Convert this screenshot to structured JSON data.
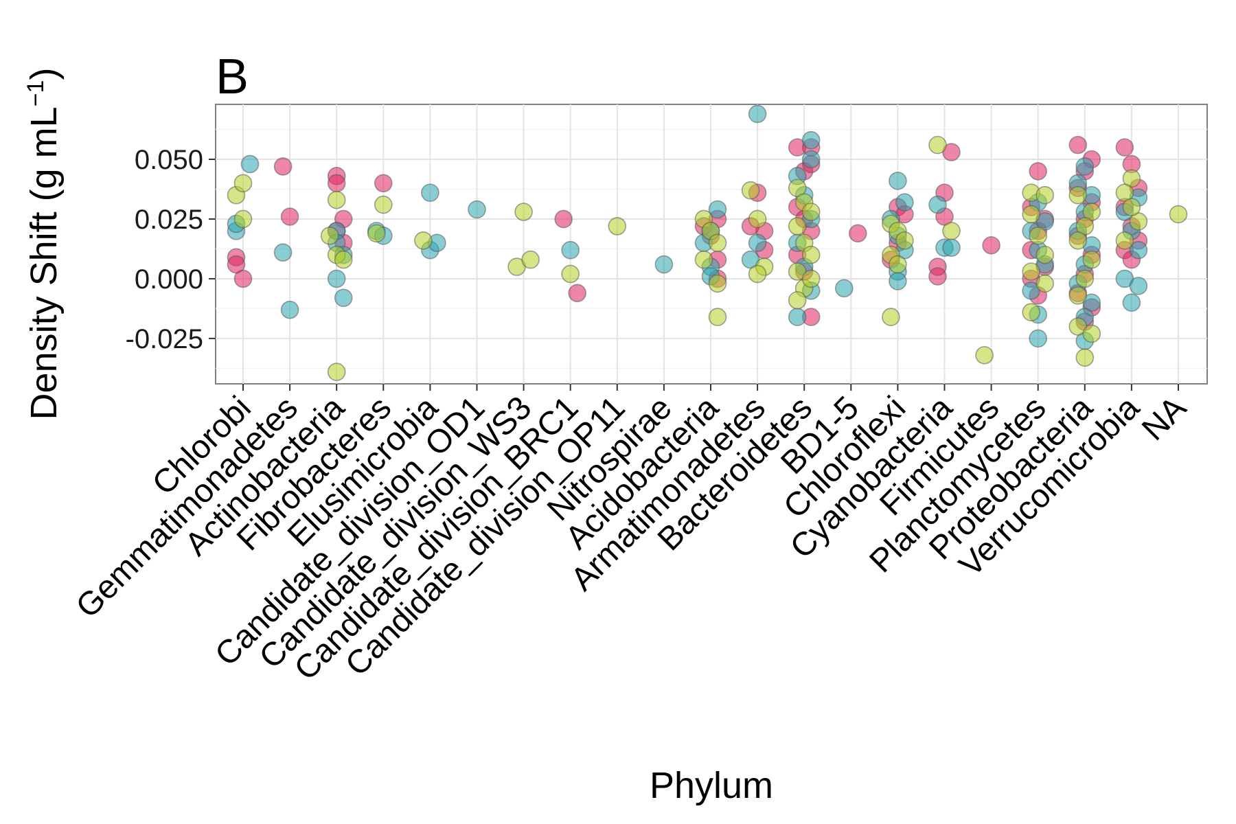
{
  "chart_data": {
    "type": "scatter",
    "title": "B",
    "xlabel": "Phylum",
    "ylabel": "Density Shift (g mL",
    "ylabel_sup": "−1",
    "ylabel_close": ")",
    "ylim": [
      -0.044,
      0.073
    ],
    "yticks": [
      -0.025,
      0.0,
      0.025,
      0.05
    ],
    "ytick_labels": [
      "-0.025",
      "0.000",
      "0.025",
      "0.050"
    ],
    "grid": true,
    "legend": "none",
    "categories": [
      "Chlorobi",
      "Gemmatimonadetes",
      "Actinobacteria",
      "Fibrobacteres",
      "Elusimicrobia",
      "Candidate_division_OD1",
      "Candidate_division_WS3",
      "Candidate_division_BRC1",
      "Candidate_division_OP11",
      "Nitrospirae",
      "Acidobacteria",
      "Armatimonadetes",
      "Bacteroidetes",
      "BD1-5",
      "Chloroflexi",
      "Cyanobacteria",
      "Firmicutes",
      "Planctomycetes",
      "Proteobacteria",
      "Verrucomicrobia",
      "NA"
    ],
    "colors": {
      "red": "#e0245e",
      "teal": "#2aa5b0",
      "lime": "#b5d025"
    },
    "points": [
      [
        0,
        -0.01,
        0.009,
        "red"
      ],
      [
        0,
        -0.01,
        0.006,
        "red"
      ],
      [
        0,
        0.0,
        0.0,
        "red"
      ],
      [
        0,
        -0.01,
        0.02,
        "teal"
      ],
      [
        0,
        -0.01,
        0.023,
        "teal"
      ],
      [
        0,
        0.01,
        0.048,
        "teal"
      ],
      [
        0,
        -0.01,
        0.035,
        "lime"
      ],
      [
        0,
        0.0,
        0.04,
        "lime"
      ],
      [
        0,
        0.0,
        0.025,
        "lime"
      ],
      [
        1,
        -0.01,
        0.047,
        "red"
      ],
      [
        1,
        0.0,
        0.026,
        "red"
      ],
      [
        1,
        -0.01,
        0.011,
        "teal"
      ],
      [
        1,
        0.0,
        -0.013,
        "teal"
      ],
      [
        2,
        0.0,
        0.043,
        "red"
      ],
      [
        2,
        0.0,
        0.04,
        "red"
      ],
      [
        2,
        0.01,
        0.025,
        "red"
      ],
      [
        2,
        0.0,
        0.02,
        "red"
      ],
      [
        2,
        0.01,
        0.015,
        "red"
      ],
      [
        2,
        0.0,
        0.02,
        "teal"
      ],
      [
        2,
        0.0,
        0.015,
        "teal"
      ],
      [
        2,
        0.0,
        0.0,
        "teal"
      ],
      [
        2,
        0.01,
        -0.008,
        "teal"
      ],
      [
        2,
        0.01,
        0.01,
        "teal"
      ],
      [
        2,
        -0.01,
        0.018,
        "lime"
      ],
      [
        2,
        0.0,
        0.033,
        "lime"
      ],
      [
        2,
        0.0,
        0.01,
        "lime"
      ],
      [
        2,
        0.01,
        0.008,
        "lime"
      ],
      [
        2,
        0.0,
        -0.039,
        "lime"
      ],
      [
        3,
        0.0,
        0.04,
        "red"
      ],
      [
        3,
        -0.01,
        0.02,
        "teal"
      ],
      [
        3,
        0.0,
        0.018,
        "teal"
      ],
      [
        3,
        0.0,
        0.031,
        "lime"
      ],
      [
        3,
        -0.01,
        0.019,
        "lime"
      ],
      [
        4,
        0.0,
        0.036,
        "teal"
      ],
      [
        4,
        0.0,
        0.012,
        "teal"
      ],
      [
        4,
        0.01,
        0.015,
        "teal"
      ],
      [
        4,
        -0.01,
        0.016,
        "lime"
      ],
      [
        5,
        0.0,
        0.029,
        "teal"
      ],
      [
        6,
        0.0,
        0.028,
        "lime"
      ],
      [
        6,
        -0.01,
        0.005,
        "lime"
      ],
      [
        6,
        0.01,
        0.008,
        "lime"
      ],
      [
        7,
        -0.01,
        0.025,
        "red"
      ],
      [
        7,
        0.01,
        -0.006,
        "red"
      ],
      [
        7,
        0.0,
        0.012,
        "teal"
      ],
      [
        7,
        0.0,
        0.002,
        "lime"
      ],
      [
        8,
        0.0,
        0.022,
        "lime"
      ],
      [
        9,
        0.0,
        0.006,
        "teal"
      ],
      [
        10,
        -0.01,
        0.022,
        "red"
      ],
      [
        10,
        0.01,
        0.025,
        "red"
      ],
      [
        10,
        0.0,
        0.018,
        "red"
      ],
      [
        10,
        0.01,
        0.008,
        "red"
      ],
      [
        10,
        0.01,
        0.0,
        "red"
      ],
      [
        10,
        0.01,
        0.029,
        "teal"
      ],
      [
        10,
        0.0,
        0.02,
        "teal"
      ],
      [
        10,
        -0.01,
        0.015,
        "teal"
      ],
      [
        10,
        0.0,
        0.005,
        "teal"
      ],
      [
        10,
        0.0,
        0.001,
        "teal"
      ],
      [
        10,
        -0.01,
        0.025,
        "lime"
      ],
      [
        10,
        0.0,
        0.02,
        "lime"
      ],
      [
        10,
        0.01,
        0.015,
        "lime"
      ],
      [
        10,
        -0.01,
        0.008,
        "lime"
      ],
      [
        10,
        0.01,
        -0.002,
        "lime"
      ],
      [
        10,
        0.01,
        -0.016,
        "lime"
      ],
      [
        11,
        0.0,
        0.036,
        "red"
      ],
      [
        11,
        0.01,
        0.02,
        "red"
      ],
      [
        11,
        -0.01,
        0.022,
        "red"
      ],
      [
        11,
        0.01,
        0.012,
        "red"
      ],
      [
        11,
        0.0,
        0.069,
        "teal"
      ],
      [
        11,
        -0.01,
        0.008,
        "teal"
      ],
      [
        11,
        0.0,
        0.015,
        "teal"
      ],
      [
        11,
        -0.01,
        0.037,
        "lime"
      ],
      [
        11,
        0.0,
        0.025,
        "lime"
      ],
      [
        11,
        0.01,
        0.005,
        "lime"
      ],
      [
        11,
        0.0,
        0.002,
        "lime"
      ],
      [
        12,
        -0.01,
        0.055,
        "red"
      ],
      [
        12,
        0.01,
        0.055,
        "red"
      ],
      [
        12,
        0.0,
        0.045,
        "red"
      ],
      [
        12,
        0.01,
        0.048,
        "red"
      ],
      [
        12,
        -0.01,
        0.03,
        "red"
      ],
      [
        12,
        0.0,
        0.025,
        "red"
      ],
      [
        12,
        0.01,
        0.02,
        "red"
      ],
      [
        12,
        -0.01,
        0.01,
        "red"
      ],
      [
        12,
        0.01,
        -0.016,
        "red"
      ],
      [
        12,
        0.0,
        0.003,
        "red"
      ],
      [
        12,
        0.01,
        0.058,
        "teal"
      ],
      [
        12,
        0.01,
        0.05,
        "teal"
      ],
      [
        12,
        -0.01,
        0.043,
        "teal"
      ],
      [
        12,
        0.0,
        0.035,
        "teal"
      ],
      [
        12,
        0.01,
        0.025,
        "teal"
      ],
      [
        12,
        -0.01,
        0.015,
        "teal"
      ],
      [
        12,
        0.0,
        0.005,
        "teal"
      ],
      [
        12,
        -0.01,
        -0.016,
        "teal"
      ],
      [
        12,
        0.01,
        -0.005,
        "teal"
      ],
      [
        12,
        -0.01,
        0.038,
        "lime"
      ],
      [
        12,
        0.0,
        0.032,
        "lime"
      ],
      [
        12,
        0.01,
        0.028,
        "lime"
      ],
      [
        12,
        -0.01,
        0.022,
        "lime"
      ],
      [
        12,
        0.0,
        0.015,
        "lime"
      ],
      [
        12,
        0.01,
        0.01,
        "lime"
      ],
      [
        12,
        -0.01,
        0.003,
        "lime"
      ],
      [
        12,
        0.0,
        -0.004,
        "lime"
      ],
      [
        12,
        -0.01,
        -0.009,
        "lime"
      ],
      [
        12,
        0.01,
        0.0,
        "lime"
      ],
      [
        13,
        0.01,
        0.019,
        "red"
      ],
      [
        13,
        -0.01,
        -0.004,
        "teal"
      ],
      [
        14,
        0.0,
        0.03,
        "red"
      ],
      [
        14,
        0.01,
        0.027,
        "red"
      ],
      [
        14,
        0.0,
        0.015,
        "red"
      ],
      [
        14,
        -0.01,
        0.008,
        "red"
      ],
      [
        14,
        0.0,
        0.041,
        "teal"
      ],
      [
        14,
        0.01,
        0.032,
        "teal"
      ],
      [
        14,
        -0.01,
        0.025,
        "teal"
      ],
      [
        14,
        0.0,
        0.018,
        "teal"
      ],
      [
        14,
        0.01,
        0.012,
        "teal"
      ],
      [
        14,
        0.0,
        0.003,
        "teal"
      ],
      [
        14,
        0.0,
        -0.001,
        "teal"
      ],
      [
        14,
        -0.01,
        0.023,
        "lime"
      ],
      [
        14,
        0.0,
        0.02,
        "lime"
      ],
      [
        14,
        0.01,
        0.016,
        "lime"
      ],
      [
        14,
        -0.01,
        0.01,
        "lime"
      ],
      [
        14,
        0.0,
        0.006,
        "lime"
      ],
      [
        14,
        -0.01,
        -0.016,
        "lime"
      ],
      [
        15,
        0.0,
        0.036,
        "red"
      ],
      [
        15,
        0.01,
        0.053,
        "red"
      ],
      [
        15,
        0.0,
        0.026,
        "red"
      ],
      [
        15,
        -0.01,
        0.005,
        "red"
      ],
      [
        15,
        -0.01,
        0.001,
        "red"
      ],
      [
        15,
        -0.01,
        0.031,
        "teal"
      ],
      [
        15,
        0.0,
        0.013,
        "teal"
      ],
      [
        15,
        0.01,
        0.013,
        "teal"
      ],
      [
        15,
        -0.01,
        0.056,
        "lime"
      ],
      [
        15,
        0.01,
        0.02,
        "lime"
      ],
      [
        16,
        0.0,
        0.014,
        "red"
      ],
      [
        16,
        -0.01,
        -0.032,
        "lime"
      ],
      [
        17,
        0.0,
        0.045,
        "red"
      ],
      [
        17,
        -0.01,
        0.03,
        "red"
      ],
      [
        17,
        0.01,
        0.025,
        "red"
      ],
      [
        17,
        0.0,
        0.02,
        "red"
      ],
      [
        17,
        -0.01,
        0.012,
        "red"
      ],
      [
        17,
        0.01,
        0.005,
        "red"
      ],
      [
        17,
        -0.01,
        0.0,
        "red"
      ],
      [
        17,
        0.0,
        -0.007,
        "red"
      ],
      [
        17,
        0.0,
        0.032,
        "teal"
      ],
      [
        17,
        0.01,
        0.024,
        "teal"
      ],
      [
        17,
        -0.01,
        0.02,
        "teal"
      ],
      [
        17,
        0.0,
        0.012,
        "teal"
      ],
      [
        17,
        0.01,
        0.006,
        "teal"
      ],
      [
        17,
        -0.01,
        -0.005,
        "teal"
      ],
      [
        17,
        0.0,
        -0.015,
        "teal"
      ],
      [
        17,
        0.0,
        -0.025,
        "teal"
      ],
      [
        17,
        -0.01,
        0.036,
        "lime"
      ],
      [
        17,
        0.01,
        0.035,
        "lime"
      ],
      [
        17,
        -0.01,
        0.027,
        "lime"
      ],
      [
        17,
        0.0,
        0.018,
        "lime"
      ],
      [
        17,
        0.01,
        0.01,
        "lime"
      ],
      [
        17,
        -0.01,
        0.003,
        "lime"
      ],
      [
        17,
        0.01,
        -0.002,
        "lime"
      ],
      [
        17,
        -0.01,
        -0.014,
        "lime"
      ],
      [
        18,
        -0.01,
        0.056,
        "red"
      ],
      [
        18,
        0.01,
        0.05,
        "red"
      ],
      [
        18,
        0.0,
        0.045,
        "red"
      ],
      [
        18,
        -0.01,
        0.038,
        "red"
      ],
      [
        18,
        0.01,
        0.032,
        "red"
      ],
      [
        18,
        0.0,
        0.025,
        "red"
      ],
      [
        18,
        -0.01,
        0.018,
        "red"
      ],
      [
        18,
        0.01,
        0.01,
        "red"
      ],
      [
        18,
        0.0,
        0.002,
        "red"
      ],
      [
        18,
        -0.01,
        -0.006,
        "red"
      ],
      [
        18,
        0.01,
        -0.012,
        "red"
      ],
      [
        18,
        0.0,
        -0.018,
        "red"
      ],
      [
        18,
        0.0,
        0.047,
        "teal"
      ],
      [
        18,
        -0.01,
        0.04,
        "teal"
      ],
      [
        18,
        0.01,
        0.035,
        "teal"
      ],
      [
        18,
        0.0,
        0.028,
        "teal"
      ],
      [
        18,
        -0.01,
        0.02,
        "teal"
      ],
      [
        18,
        0.01,
        0.014,
        "teal"
      ],
      [
        18,
        0.0,
        0.006,
        "teal"
      ],
      [
        18,
        -0.01,
        -0.002,
        "teal"
      ],
      [
        18,
        0.01,
        -0.01,
        "teal"
      ],
      [
        18,
        0.0,
        -0.016,
        "teal"
      ],
      [
        18,
        0.0,
        -0.026,
        "teal"
      ],
      [
        18,
        -0.01,
        0.035,
        "lime"
      ],
      [
        18,
        0.01,
        0.028,
        "lime"
      ],
      [
        18,
        0.0,
        0.022,
        "lime"
      ],
      [
        18,
        -0.01,
        0.016,
        "lime"
      ],
      [
        18,
        0.01,
        0.008,
        "lime"
      ],
      [
        18,
        0.0,
        0.0,
        "lime"
      ],
      [
        18,
        -0.01,
        -0.007,
        "lime"
      ],
      [
        18,
        -0.01,
        -0.02,
        "lime"
      ],
      [
        18,
        0.01,
        -0.023,
        "lime"
      ],
      [
        18,
        0.0,
        -0.033,
        "lime"
      ],
      [
        19,
        -0.01,
        0.055,
        "red"
      ],
      [
        19,
        0.0,
        0.048,
        "red"
      ],
      [
        19,
        0.01,
        0.038,
        "red"
      ],
      [
        19,
        -0.01,
        0.03,
        "red"
      ],
      [
        19,
        0.0,
        0.022,
        "red"
      ],
      [
        19,
        0.01,
        0.016,
        "red"
      ],
      [
        19,
        -0.01,
        0.012,
        "red"
      ],
      [
        19,
        0.0,
        0.008,
        "red"
      ],
      [
        19,
        0.01,
        0.034,
        "teal"
      ],
      [
        19,
        -0.01,
        0.028,
        "teal"
      ],
      [
        19,
        0.0,
        0.02,
        "teal"
      ],
      [
        19,
        0.01,
        0.012,
        "teal"
      ],
      [
        19,
        -0.01,
        0.0,
        "teal"
      ],
      [
        19,
        0.0,
        -0.01,
        "teal"
      ],
      [
        19,
        0.01,
        -0.003,
        "teal"
      ],
      [
        19,
        0.0,
        0.042,
        "lime"
      ],
      [
        19,
        -0.01,
        0.036,
        "lime"
      ],
      [
        19,
        0.01,
        0.024,
        "lime"
      ],
      [
        19,
        0.0,
        0.03,
        "lime"
      ],
      [
        19,
        -0.01,
        0.016,
        "lime"
      ],
      [
        20,
        0.0,
        0.027,
        "lime"
      ]
    ]
  }
}
